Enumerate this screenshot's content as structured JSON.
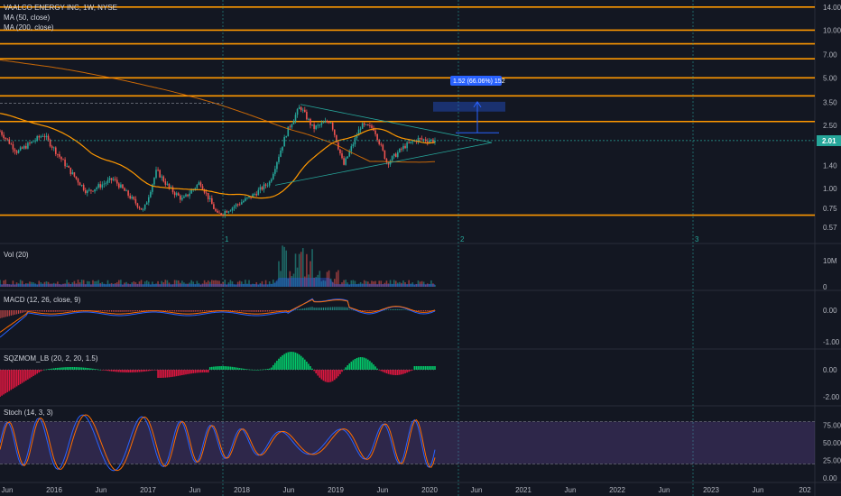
{
  "legend": {
    "symbol": "VAALCO ENERGY INC, 1W, NYSE",
    "ma50": "MA (50, close)",
    "ma200": "MA (200, close)"
  },
  "panes": {
    "volume": "Vol (20)",
    "macd": "MACD (12, 26, close, 9)",
    "sqzmom": "SQZMOM_LB (20, 2, 20, 1.5)",
    "stoch": "Stoch (14, 3, 3)"
  },
  "last_price": "2.01",
  "measure_label": "1.52 (66.06%) 152",
  "colors": {
    "background": "#131722",
    "up": "#26a69a",
    "down": "#ef5350",
    "ma50": "#ff9800",
    "ma200": "#f57c00",
    "level": "#ff9800",
    "wave": "#26a69a",
    "macd": "#2962ff",
    "signal": "#ff6d00",
    "stoch_k": "#2962ff",
    "stoch_d": "#ff6d00",
    "stoch_band": "#7e57c2",
    "price_tag": "#26a69a",
    "measure": "#2962ff"
  },
  "chart_data": {
    "type": "candlestick",
    "title": "VAALCO ENERGY INC, 1W, NYSE",
    "x_ticks": [
      "Jun",
      "2016",
      "Jun",
      "2017",
      "Jun",
      "2018",
      "Jun",
      "2019",
      "Jun",
      "2020",
      "Jun",
      "2021",
      "Jun",
      "2022",
      "Jun",
      "2023",
      "Jun",
      "202"
    ],
    "price_axis": {
      "scale": "log",
      "ticks": [
        "14.00",
        "10.00",
        "7.00",
        "5.00",
        "3.50",
        "2.50",
        "1.40",
        "1.00",
        "0.75",
        "0.57"
      ],
      "current": 2.01
    },
    "horizontal_levels": [
      14.0,
      10.0,
      8.2,
      6.6,
      5.0,
      3.85,
      2.65,
      0.68
    ],
    "wave_labels": [
      "1",
      "2",
      "3"
    ],
    "price_key_points": [
      {
        "t": 0.0,
        "p": 2.3
      },
      {
        "t": 0.04,
        "p": 1.7
      },
      {
        "t": 0.1,
        "p": 2.2
      },
      {
        "t": 0.16,
        "p": 1.3
      },
      {
        "t": 0.2,
        "p": 0.95
      },
      {
        "t": 0.26,
        "p": 1.15
      },
      {
        "t": 0.33,
        "p": 0.72
      },
      {
        "t": 0.36,
        "p": 1.3
      },
      {
        "t": 0.39,
        "p": 1.0
      },
      {
        "t": 0.42,
        "p": 0.85
      },
      {
        "t": 0.46,
        "p": 1.1
      },
      {
        "t": 0.5,
        "p": 0.68
      },
      {
        "t": 0.53,
        "p": 0.75
      },
      {
        "t": 0.58,
        "p": 0.9
      },
      {
        "t": 0.62,
        "p": 1.1
      },
      {
        "t": 0.66,
        "p": 2.3
      },
      {
        "t": 0.69,
        "p": 3.3
      },
      {
        "t": 0.72,
        "p": 2.4
      },
      {
        "t": 0.76,
        "p": 2.7
      },
      {
        "t": 0.79,
        "p": 1.4
      },
      {
        "t": 0.83,
        "p": 2.5
      },
      {
        "t": 0.86,
        "p": 2.4
      },
      {
        "t": 0.89,
        "p": 1.45
      },
      {
        "t": 0.93,
        "p": 1.85
      },
      {
        "t": 0.96,
        "p": 2.05
      },
      {
        "t": 1.0,
        "p": 2.01
      }
    ],
    "volume_axis": {
      "ticks": [
        "10M",
        "0"
      ]
    },
    "macd_axis": {
      "ticks": [
        "0.00",
        "-1.00"
      ]
    },
    "sqzmom_axis": {
      "ticks": [
        "0.00",
        "-2.00"
      ]
    },
    "stoch_axis": {
      "ticks": [
        "75.00",
        "50.00",
        "25.00",
        "0.00"
      ],
      "bands": [
        80,
        20
      ]
    },
    "measure": {
      "from": 2.01,
      "to": 3.53,
      "change": 1.52,
      "percent": 66.06,
      "bars": 152
    }
  }
}
